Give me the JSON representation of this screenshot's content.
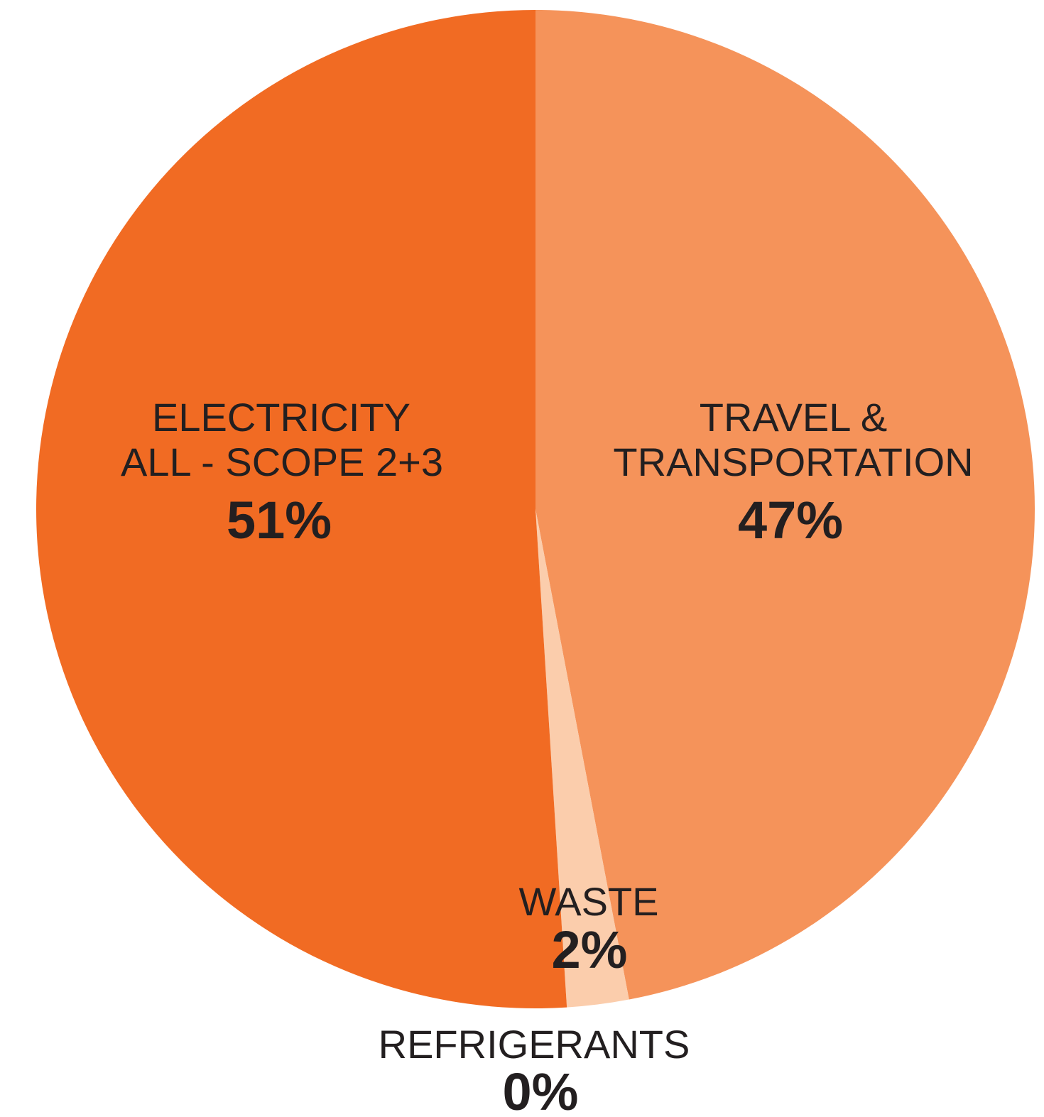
{
  "chart_data": {
    "type": "pie",
    "slices": [
      {
        "label_lines": [
          "TRAVEL &",
          "TRANSPORTATION"
        ],
        "value": 47,
        "value_label": "47%",
        "color": "#f5935a"
      },
      {
        "label_lines": [
          "WASTE"
        ],
        "value": 2,
        "value_label": "2%",
        "color": "#fbcdac"
      },
      {
        "label_lines": [
          "REFRIGERANTS"
        ],
        "value": 0,
        "value_label": "0%",
        "color": "#fbcdac"
      },
      {
        "label_lines": [
          "ELECTRICITY",
          "ALL - SCOPE 2+3"
        ],
        "value": 51,
        "value_label": "51%",
        "color": "#f16b23"
      }
    ],
    "start": "12 o'clock",
    "direction": "clockwise"
  }
}
